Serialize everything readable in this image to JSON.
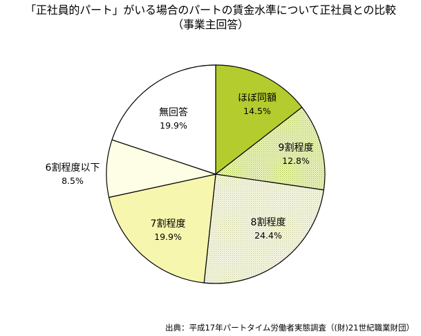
{
  "title_lines": [
    "「正社員的パート」がいる場合のパートの賃金水準について正社員との比較",
    "（事業主回答）"
  ],
  "source": "出典：平成17年パートタイム労働者実態調査（(財)21世紀職業財団）",
  "chart_data": {
    "type": "pie",
    "title": "「正社員的パート」がいる場合のパートの賃金水準について正社員との比較（事業主回答）",
    "start": "12 o'clock",
    "direction": "clockwise",
    "slices": [
      {
        "label": "ほぼ同額",
        "value": 14.5,
        "pct_text": "14.5%",
        "color": "#b5cc2e",
        "pattern": "solid"
      },
      {
        "label": "9割程度",
        "value": 12.8,
        "pct_text": "12.8%",
        "color": "#cfe08a",
        "pattern": "dotted"
      },
      {
        "label": "8割程度",
        "value": 24.4,
        "pct_text": "24.4%",
        "color": "#f3f3d6",
        "pattern": "dotted"
      },
      {
        "label": "7割程度",
        "value": 19.9,
        "pct_text": "19.9%",
        "color": "#f6f6ae",
        "pattern": "solid"
      },
      {
        "label": "6割程度以下",
        "value": 8.5,
        "pct_text": "8.5%",
        "color": "#fefde6",
        "pattern": "solid"
      },
      {
        "label": "無回答",
        "value": 19.9,
        "pct_text": "19.9%",
        "color": "#ffffff",
        "pattern": "solid"
      }
    ]
  }
}
